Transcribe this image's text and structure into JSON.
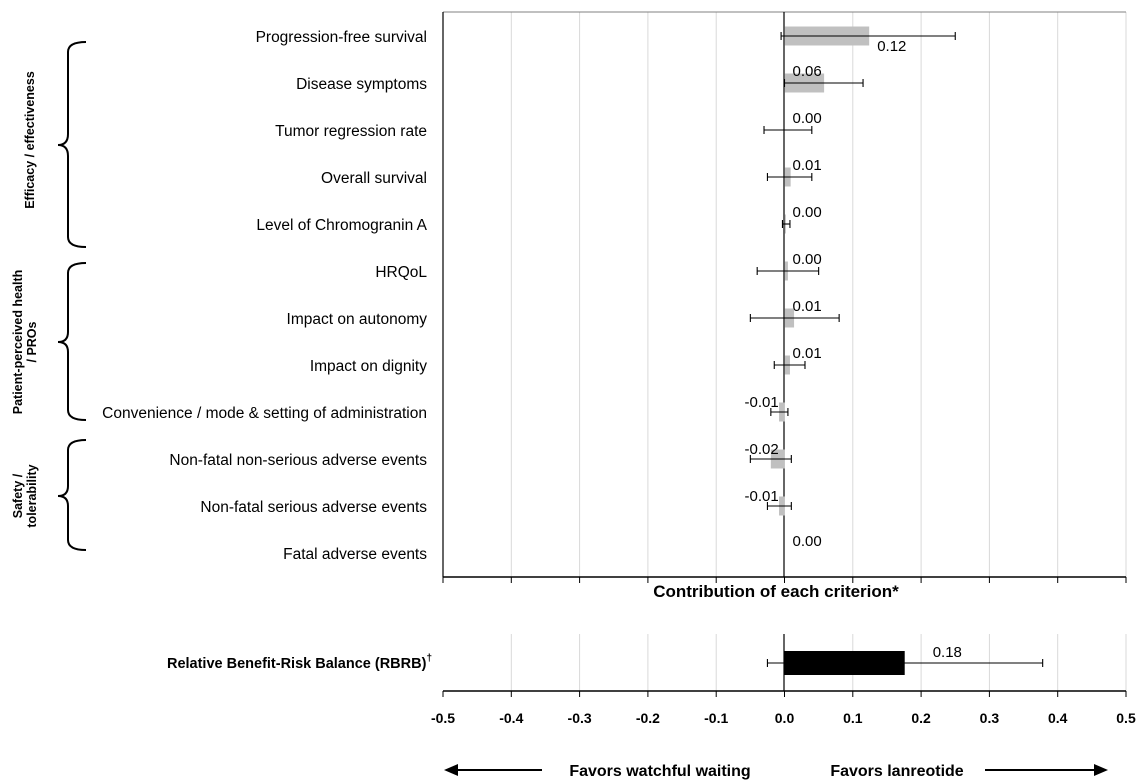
{
  "chart_data": [
    {
      "type": "bar",
      "orientation": "horizontal",
      "xlabel": "Contribution of each criterion*",
      "xlim": [
        -0.5,
        0.5
      ],
      "grid": true,
      "groups": [
        {
          "label": "Efficacy / effectiveness",
          "categories": [
            "Progression-free survival",
            "Disease symptoms",
            "Tumor regression rate",
            "Overall survival",
            "Level of Chromogranin A"
          ]
        },
        {
          "label": "Patient-perceived health  / PROs",
          "categories": [
            "HRQoL",
            "Impact on autonomy",
            "Impact on dignity",
            "Convenience / mode & setting of administration"
          ]
        },
        {
          "label": "Safety / tolerability",
          "categories": [
            "Non-fatal non-serious adverse events",
            "Non-fatal serious adverse events",
            "Fatal adverse events"
          ]
        }
      ],
      "categories": [
        "Progression-free survival",
        "Disease symptoms",
        "Tumor regression rate",
        "Overall survival",
        "Level of Chromogranin A",
        "HRQoL",
        "Impact on autonomy",
        "Impact on dignity",
        "Convenience / mode & setting of administration",
        "Non-fatal non-serious adverse events",
        "Non-fatal serious adverse events",
        "Fatal adverse events"
      ],
      "values": [
        0.124,
        0.058,
        0.0,
        0.009,
        0.002,
        0.005,
        0.014,
        0.008,
        -0.008,
        -0.02,
        -0.008,
        0.0
      ],
      "value_labels": [
        "0.12",
        "0.06",
        "0.00",
        "0.01",
        "0.00",
        "0.00",
        "0.01",
        "0.01",
        "-0.01",
        "-0.02",
        "-0.01",
        "0.00"
      ],
      "error_low": [
        -0.005,
        0.0,
        -0.03,
        -0.025,
        -0.003,
        -0.04,
        -0.05,
        -0.015,
        -0.02,
        -0.05,
        -0.025,
        0.0
      ],
      "error_high": [
        0.25,
        0.115,
        0.04,
        0.04,
        0.008,
        0.05,
        0.08,
        0.03,
        0.005,
        0.01,
        0.01,
        0.0
      ],
      "bar_color": "#c0c0c0"
    },
    {
      "type": "bar",
      "orientation": "horizontal",
      "category_label": "Relative Benefit-Risk Balance (RBRB)",
      "category_sup": "†",
      "value": 0.176,
      "value_label": "0.18",
      "error_low": -0.025,
      "error_high": 0.378,
      "bar_color": "#000000",
      "xlim": [
        -0.5,
        0.5
      ],
      "xticks": [
        "-0.5",
        "-0.4",
        "-0.3",
        "-0.2",
        "-0.1",
        "0.0",
        "0.1",
        "0.2",
        "0.3",
        "0.4",
        "0.5"
      ],
      "grid": true
    }
  ],
  "direction": {
    "left": "Favors watchful waiting",
    "right": "Favors lanreotide"
  }
}
